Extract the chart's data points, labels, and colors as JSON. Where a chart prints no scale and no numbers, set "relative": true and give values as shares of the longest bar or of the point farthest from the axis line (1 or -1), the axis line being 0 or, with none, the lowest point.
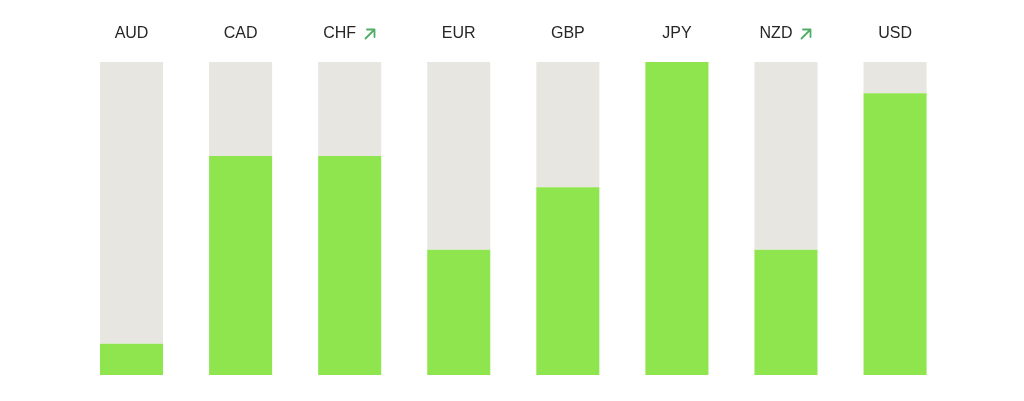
{
  "chart_data": {
    "type": "bar",
    "relative": true,
    "stacked": true,
    "categories": [
      "AUD",
      "CAD",
      "CHF",
      "EUR",
      "GBP",
      "JPY",
      "NZD",
      "USD"
    ],
    "series": [
      {
        "color": "#8ee54e",
        "values": [
          0.1,
          0.7,
          0.7,
          0.4,
          0.6,
          1,
          0.4,
          0.9
        ]
      },
      {
        "color": "#e7e6e1",
        "values": [
          0.9,
          0.3,
          0.3,
          0.6,
          0.4,
          0,
          0.6,
          0.1
        ]
      }
    ]
  }
}
